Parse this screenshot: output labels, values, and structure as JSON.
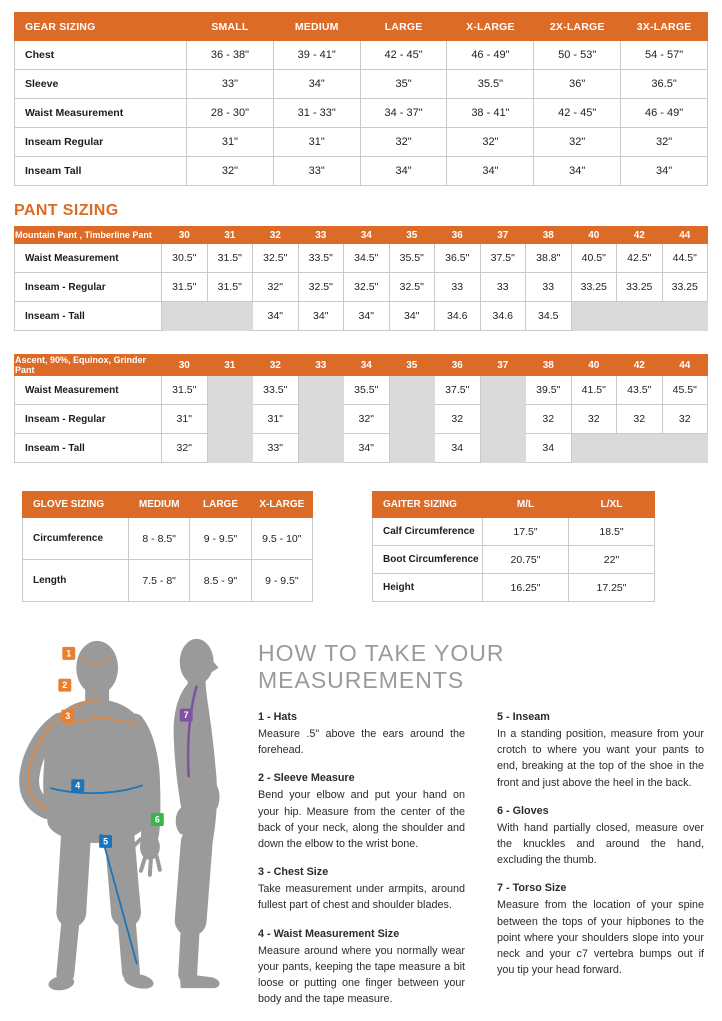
{
  "colors": {
    "header_orange": "#DC6B28",
    "badge_orange": "#E87F33",
    "line_orange": "#E08A45",
    "badge_blue": "#1B75BB",
    "badge_green": "#3BB54A",
    "badge_purple": "#7C52A1",
    "gray_cell": "#DADADA",
    "body_gray": "#9A9A9A",
    "heading_gray": "#9A9A9A"
  },
  "gear_table": {
    "title": "GEAR SIZING",
    "columns": [
      "SMALL",
      "MEDIUM",
      "LARGE",
      "X-LARGE",
      "2X-LARGE",
      "3X-LARGE"
    ],
    "rows": [
      {
        "label": "Chest",
        "values": [
          "36 - 38\"",
          "39 - 41\"",
          "42 - 45\"",
          "46 - 49\"",
          "50 - 53\"",
          "54 - 57\""
        ]
      },
      {
        "label": "Sleeve",
        "values": [
          "33\"",
          "34\"",
          "35\"",
          "35.5\"",
          "36\"",
          "36.5\""
        ]
      },
      {
        "label": "Waist Measurement",
        "values": [
          "28 - 30\"",
          "31 - 33\"",
          "34 - 37\"",
          "38 - 41\"",
          "42 - 45\"",
          "46 - 49\""
        ]
      },
      {
        "label": "Inseam Regular",
        "values": [
          "31\"",
          "31\"",
          "32\"",
          "32\"",
          "32\"",
          "32\""
        ]
      },
      {
        "label": "Inseam Tall",
        "values": [
          "32\"",
          "33\"",
          "34\"",
          "34\"",
          "34\"",
          "34\""
        ]
      }
    ]
  },
  "pant_section_title": "PANT SIZING",
  "pant_table_1": {
    "title": "Mountain Pant , Timberline Pant",
    "columns": [
      "30",
      "31",
      "32",
      "33",
      "34",
      "35",
      "36",
      "37",
      "38",
      "40",
      "42",
      "44"
    ],
    "rows": [
      {
        "label": "Waist Measurement",
        "values": [
          "30.5\"",
          "31.5\"",
          "32.5\"",
          "33.5\"",
          "34.5\"",
          "35.5\"",
          "36.5\"",
          "37.5\"",
          "38.8\"",
          "40.5\"",
          "42.5\"",
          "44.5\""
        ]
      },
      {
        "label": "Inseam - Regular",
        "values": [
          "31.5\"",
          "31.5\"",
          "32\"",
          "32.5\"",
          "32.5\"",
          "32.5\"",
          "33",
          "33",
          "33",
          "33.25",
          "33.25",
          "33.25"
        ]
      },
      {
        "label": "Inseam - Tall",
        "values": [
          "",
          "",
          "34\"",
          "34\"",
          "34\"",
          "34\"",
          "34.6",
          "34.6",
          "34.5",
          "",
          "",
          ""
        ]
      }
    ]
  },
  "pant_table_2": {
    "title": "Ascent, 90%, Equinox, Grinder Pant",
    "columns": [
      "30",
      "31",
      "32",
      "33",
      "34",
      "35",
      "36",
      "37",
      "38",
      "40",
      "42",
      "44"
    ],
    "rows": [
      {
        "label": "Waist Measurement",
        "values": [
          "31.5\"",
          "",
          "33.5\"",
          "",
          "35.5\"",
          "",
          "37.5\"",
          "",
          "39.5\"",
          "41.5\"",
          "43.5\"",
          "45.5\""
        ]
      },
      {
        "label": "Inseam - Regular",
        "values": [
          "31\"",
          "",
          "31\"",
          "",
          "32\"",
          "",
          "32",
          "",
          "32",
          "32",
          "32",
          "32"
        ]
      },
      {
        "label": "Inseam - Tall",
        "values": [
          "32\"",
          "",
          "33\"",
          "",
          "34\"",
          "",
          "34",
          "",
          "34",
          "",
          "",
          ""
        ]
      }
    ]
  },
  "glove_table": {
    "title": "GLOVE SIZING",
    "columns": [
      "MEDIUM",
      "LARGE",
      "X-LARGE"
    ],
    "rows": [
      {
        "label": "Circumference",
        "values": [
          "8 - 8.5\"",
          "9 - 9.5\"",
          "9.5 - 10\""
        ]
      },
      {
        "label": "Length",
        "values": [
          "7.5 - 8\"",
          "8.5 - 9\"",
          "9 - 9.5\""
        ]
      }
    ]
  },
  "gaiter_table": {
    "title": "GAITER SIZING",
    "columns": [
      "M/L",
      "L/XL"
    ],
    "rows": [
      {
        "label": "Calf Circumference",
        "values": [
          "17.5\"",
          "18.5\""
        ]
      },
      {
        "label": "Boot Circumference",
        "values": [
          "20.75\"",
          "22\""
        ]
      },
      {
        "label": "Height",
        "values": [
          "16.25\"",
          "17.25\""
        ]
      }
    ]
  },
  "measurements": {
    "title": "HOW TO TAKE YOUR MEASUREMENTS",
    "left": [
      {
        "heading": "1 - Hats",
        "body": "Measure .5\" above the ears around the forehead."
      },
      {
        "heading": "2 - Sleeve Measure",
        "body": "Bend your elbow and put your hand on your hip. Measure from the center of the back of your neck, along the shoulder and down the elbow to the wrist bone."
      },
      {
        "heading": "3 - Chest Size",
        "body": "Take measurement under armpits, around fullest part of chest and shoulder blades."
      },
      {
        "heading": "4 - Waist Measurement Size",
        "body": "Measure around where you normally wear your pants, keeping the tape measure a bit loose or putting one finger between your body and the tape measure."
      }
    ],
    "right": [
      {
        "heading": "5 - Inseam",
        "body": "In a standing position, measure from your crotch to where you want your pants to end, breaking at the top of the shoe in the front and just above the heel in the back."
      },
      {
        "heading": "6 - Gloves",
        "body": "With hand partially closed, measure over the knuckles and around the hand, excluding the thumb."
      },
      {
        "heading": "7 - Torso Size",
        "body": "Measure from the location of your spine between the tops of your hipbones to the point where your shoulders slope into your neck and your c7 vertebra bumps out if you tip your head forward."
      }
    ]
  },
  "figure": {
    "badges": [
      "1",
      "2",
      "3",
      "4",
      "5",
      "6",
      "7"
    ]
  }
}
